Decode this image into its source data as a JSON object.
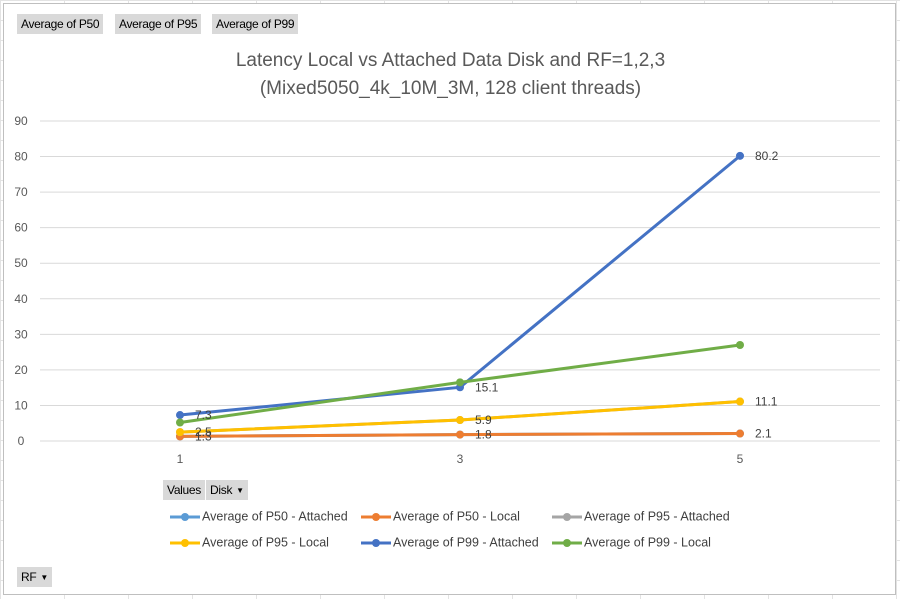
{
  "pivot": {
    "data_fields": [
      "Average of P50",
      "Average of P95",
      "Average of P99"
    ],
    "values_label": "Values",
    "column_field": "Disk",
    "row_field": "RF"
  },
  "chart_data": {
    "type": "line",
    "title": "Latency Local vs Attached Data Disk and RF=1,2,3",
    "subtitle": "(Mixed5050_4k_10M_3M, 128 client threads)",
    "categories": [
      "1",
      "3",
      "5"
    ],
    "x": [
      1,
      3,
      5
    ],
    "ylim": [
      0,
      90
    ],
    "yticks": [
      0,
      10,
      20,
      30,
      40,
      50,
      60,
      70,
      80,
      90
    ],
    "grid": true,
    "legend_position": "bottom",
    "series": [
      {
        "name": "Average of P50 - Attached",
        "color": "#5b9bd5",
        "values": [
          1.3,
          1.8,
          2.1
        ],
        "labels": [
          null,
          null,
          null
        ]
      },
      {
        "name": "Average of P50 - Local",
        "color": "#ed7d31",
        "values": [
          1.3,
          1.8,
          2.1
        ],
        "labels": [
          "1.3",
          "1.8",
          "2.1"
        ]
      },
      {
        "name": "Average of P95 - Attached",
        "color": "#a5a5a5",
        "values": [
          2.5,
          5.9,
          11.1
        ],
        "labels": [
          null,
          null,
          null
        ]
      },
      {
        "name": "Average of P95 - Local",
        "color": "#ffc000",
        "values": [
          2.5,
          5.9,
          11.1
        ],
        "labels": [
          "2.5",
          "5.9",
          "11.1"
        ]
      },
      {
        "name": "Average of P99 - Attached",
        "color": "#4472c4",
        "values": [
          7.3,
          15.1,
          80.2
        ],
        "labels": [
          "7.3",
          "15.1",
          "80.2"
        ]
      },
      {
        "name": "Average of P99 - Local",
        "color": "#70ad47",
        "values": [
          5.2,
          16.5,
          27.0
        ],
        "labels": [
          null,
          null,
          null
        ]
      }
    ]
  }
}
